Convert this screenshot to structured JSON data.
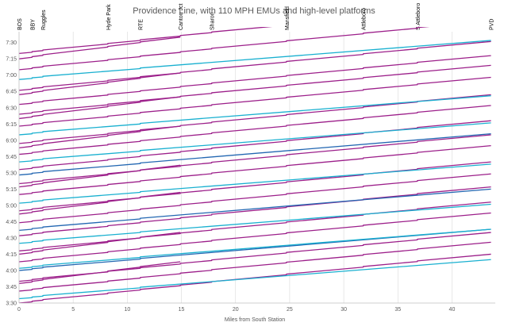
{
  "chart_data": {
    "type": "line",
    "title": "Providence Line, with 110 MPH EMUs and high-level platforms",
    "xlabel": "Miles from South Station",
    "ylabel": "",
    "xlim": [
      0,
      44
    ],
    "ylim": [
      "3:30",
      "7:40"
    ],
    "x_ticks": [
      "0",
      "5",
      "10",
      "15",
      "20",
      "25",
      "30",
      "35",
      "40"
    ],
    "y_ticks": [
      "3:30",
      "3:45",
      "4:00",
      "4:15",
      "4:30",
      "4:45",
      "5:00",
      "5:15",
      "5:30",
      "5:45",
      "6:00",
      "6:15",
      "6:30",
      "6:45",
      "7:00",
      "7:15",
      "7:30"
    ],
    "grid": "vertical",
    "stations": [
      {
        "name": "BOS",
        "mile": 0
      },
      {
        "name": "BBY",
        "mile": 1.2
      },
      {
        "name": "Ruggles",
        "mile": 2.2
      },
      {
        "name": "Hyde Park",
        "mile": 8.2
      },
      {
        "name": "RTE",
        "mile": 11.2
      },
      {
        "name": "Canton Jct",
        "mile": 14.9
      },
      {
        "name": "Sharon",
        "mile": 17.8
      },
      {
        "name": "Mansfield",
        "mile": 24.7
      },
      {
        "name": "Attleboro",
        "mile": 31.8
      },
      {
        "name": "S Attleboro",
        "mile": 36.8
      },
      {
        "name": "PVD",
        "mile": 43.6
      }
    ],
    "service_patterns": [
      {
        "color": "#9c1f8a",
        "stops": [
          0,
          1.2,
          2.2,
          8.2,
          11.2,
          14.9,
          17.8,
          24.7,
          31.8,
          36.8,
          43.6
        ],
        "run_minutes": 45.0
      },
      {
        "color": "#9c1f8a",
        "stops": [
          0,
          1.2,
          2.2,
          8.2,
          11.2,
          14.9
        ],
        "run_minutes": 20.0
      },
      {
        "color": "#19b0d0",
        "stops": [
          0,
          1.2,
          2.2,
          11.2,
          43.6
        ],
        "run_minutes": 36.0
      },
      {
        "color": "#2367b2",
        "stops": [
          0,
          1.2,
          2.2,
          11.2,
          43.6
        ],
        "run_minutes": 38.0
      }
    ],
    "series": [
      {
        "start": "3:30",
        "pattern": 0
      },
      {
        "start": "3:34",
        "pattern": 2
      },
      {
        "start": "3:41",
        "pattern": 0
      },
      {
        "start": "3:48",
        "pattern": 1
      },
      {
        "start": "3:50",
        "pattern": 0
      },
      {
        "start": "4:00",
        "pattern": 3
      },
      {
        "start": "4:02",
        "pattern": 2
      },
      {
        "start": "4:08",
        "pattern": 0
      },
      {
        "start": "4:15",
        "pattern": 1
      },
      {
        "start": "4:18",
        "pattern": 0
      },
      {
        "start": "4:25",
        "pattern": 2
      },
      {
        "start": "4:32",
        "pattern": 0
      },
      {
        "start": "4:37",
        "pattern": 3
      },
      {
        "start": "4:44",
        "pattern": 0
      },
      {
        "start": "4:52",
        "pattern": 1
      },
      {
        "start": "4:55",
        "pattern": 0
      },
      {
        "start": "5:02",
        "pattern": 2
      },
      {
        "start": "5:10",
        "pattern": 0
      },
      {
        "start": "5:17",
        "pattern": 1
      },
      {
        "start": "5:20",
        "pattern": 0
      },
      {
        "start": "5:28",
        "pattern": 3
      },
      {
        "start": "5:33",
        "pattern": 0
      },
      {
        "start": "5:40",
        "pattern": 2
      },
      {
        "start": "5:47",
        "pattern": 0
      },
      {
        "start": "5:53",
        "pattern": 1
      },
      {
        "start": "5:57",
        "pattern": 0
      },
      {
        "start": "6:05",
        "pattern": 2
      },
      {
        "start": "6:13",
        "pattern": 0
      },
      {
        "start": "6:20",
        "pattern": 1
      },
      {
        "start": "6:24",
        "pattern": 0
      },
      {
        "start": "6:33",
        "pattern": 0
      },
      {
        "start": "6:42",
        "pattern": 1
      },
      {
        "start": "6:46",
        "pattern": 0
      },
      {
        "start": "6:56",
        "pattern": 2
      },
      {
        "start": "7:05",
        "pattern": 0
      },
      {
        "start": "7:15",
        "pattern": 1
      },
      {
        "start": "7:20",
        "pattern": 0
      }
    ]
  }
}
